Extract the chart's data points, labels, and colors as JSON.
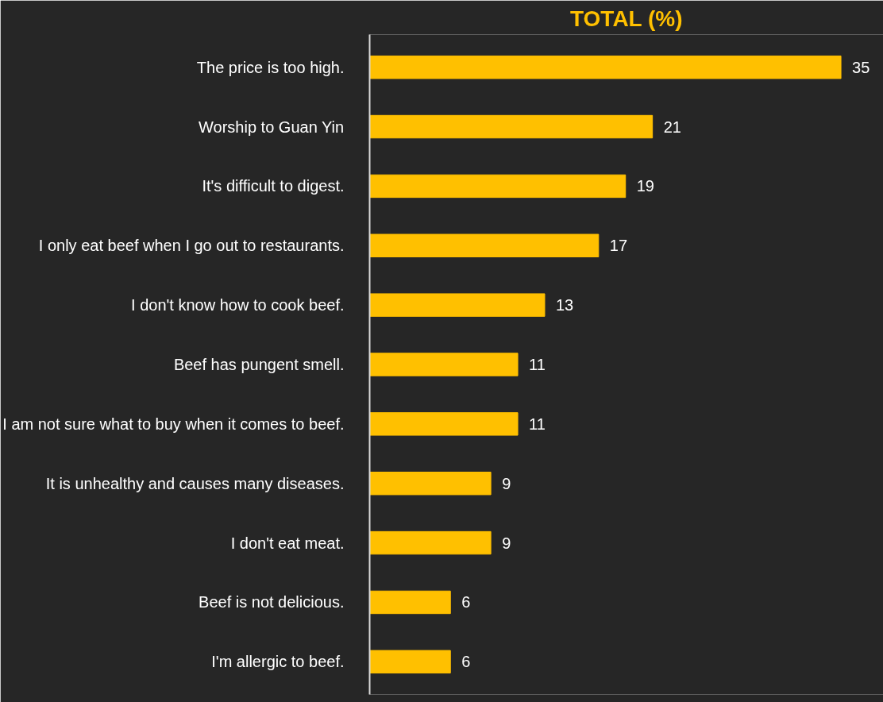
{
  "chart_data": {
    "type": "bar",
    "orientation": "horizontal",
    "title": "TOTAL (%)",
    "categories": [
      "The price is too high.",
      "Worship to Guan Yin",
      "It's difficult to digest.",
      "I only eat beef when I go out to restaurants.",
      "I don't know how to cook beef.",
      "Beef has pungent smell.",
      "I am not sure what to buy when it comes to beef.",
      "It is unhealthy and causes many diseases.",
      "I don't eat meat.",
      "Beef is not delicious.",
      "I'm allergic to beef."
    ],
    "values": [
      35,
      21,
      19,
      17,
      13,
      11,
      11,
      9,
      9,
      6,
      6
    ],
    "color": "#ffc000",
    "data_labels": true
  }
}
